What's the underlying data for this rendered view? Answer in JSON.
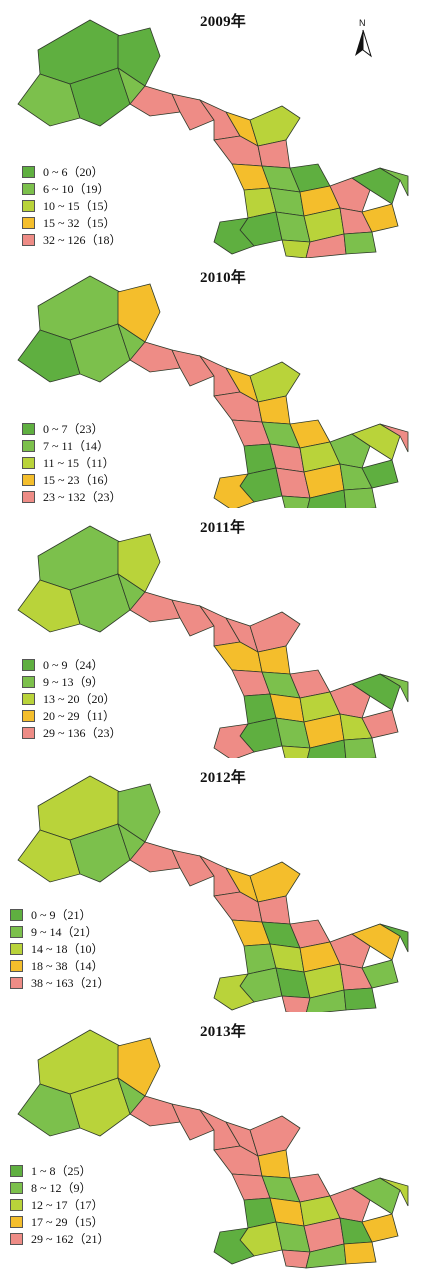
{
  "colors": {
    "c1": "#5faf40",
    "c2": "#7cc04c",
    "c3": "#b9d33a",
    "c4": "#f4be2c",
    "c5": "#ee8c86",
    "border": "#2f3a2a"
  },
  "north_arrow": {
    "label": "N",
    "icon": "north-arrow-icon"
  },
  "maps": [
    {
      "title": "2009年",
      "legend": [
        {
          "range": "0 ~ 6",
          "count": "（20）"
        },
        {
          "range": "6 ~ 10",
          "count": "（19）"
        },
        {
          "range": "10 ~ 15",
          "count": "（15）"
        },
        {
          "range": "15 ~ 32",
          "count": "（15）"
        },
        {
          "range": "32 ~ 126",
          "count": "（18）"
        }
      ]
    },
    {
      "title": "2010年",
      "legend": [
        {
          "range": "0 ~ 7",
          "count": "（23）"
        },
        {
          "range": "7 ~ 11",
          "count": "（14）"
        },
        {
          "range": "11 ~ 15",
          "count": "（11）"
        },
        {
          "range": "15 ~ 23",
          "count": "（16）"
        },
        {
          "range": "23 ~ 132",
          "count": "（23）"
        }
      ]
    },
    {
      "title": "2011年",
      "legend": [
        {
          "range": "0 ~ 9",
          "count": "（24）"
        },
        {
          "range": "9 ~ 13",
          "count": "（9）"
        },
        {
          "range": "13 ~ 20",
          "count": "（20）"
        },
        {
          "range": "20 ~ 29",
          "count": "（11）"
        },
        {
          "range": "29 ~ 136",
          "count": "（23）"
        }
      ]
    },
    {
      "title": "2012年",
      "legend": [
        {
          "range": "0 ~ 9",
          "count": "（21）"
        },
        {
          "range": "9 ~ 14",
          "count": "（21）"
        },
        {
          "range": "14 ~ 18",
          "count": "（10）"
        },
        {
          "range": "18 ~ 38",
          "count": "（14）"
        },
        {
          "range": "38 ~ 163",
          "count": "（21）"
        }
      ]
    },
    {
      "title": "2013年",
      "legend": [
        {
          "range": "1 ~ 8",
          "count": "（25）"
        },
        {
          "range": "8 ~ 12",
          "count": "（9）"
        },
        {
          "range": "12 ~ 17",
          "count": "（17）"
        },
        {
          "range": "17 ~ 29",
          "count": "（15）"
        },
        {
          "range": "29 ~ 162",
          "count": "（21）"
        }
      ]
    }
  ]
}
